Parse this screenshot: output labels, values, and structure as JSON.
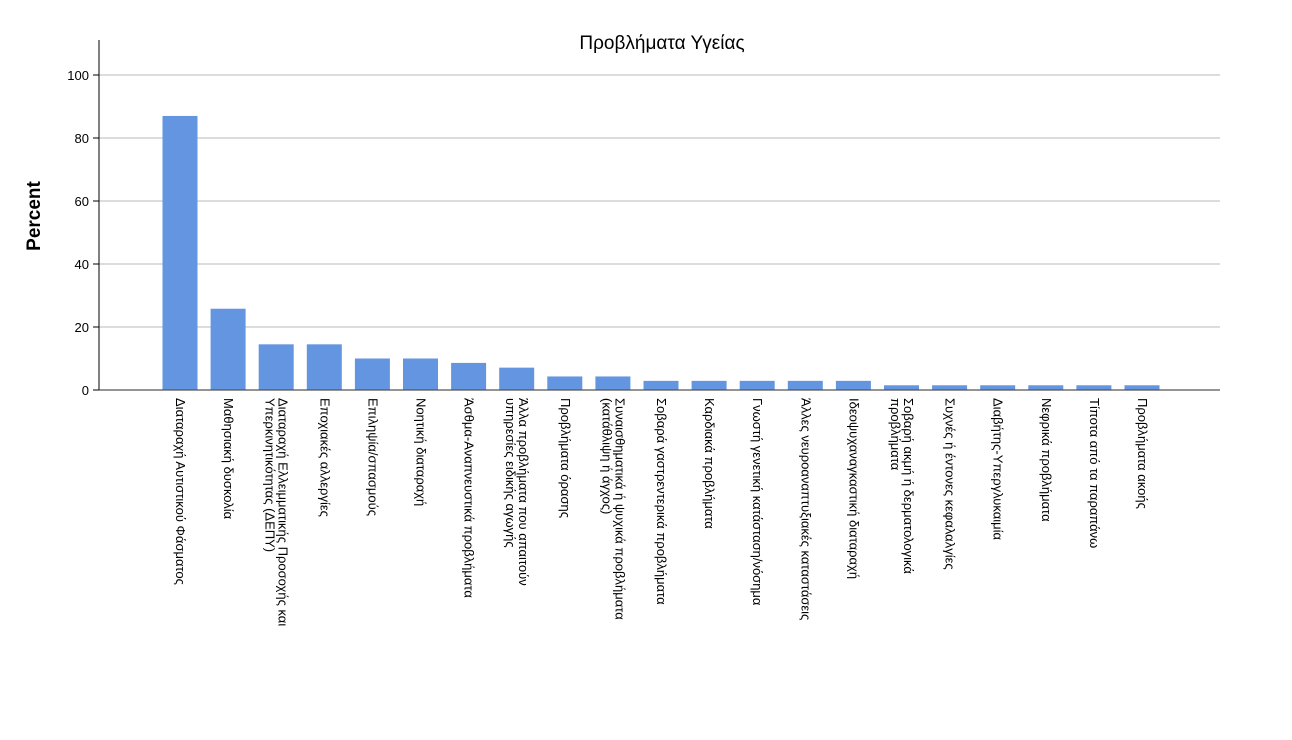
{
  "chart_data": {
    "type": "bar",
    "title": "Προβλήματα Υγείας",
    "ylabel": "Percent",
    "xlabel": "",
    "ylim": [
      0,
      110
    ],
    "yticks": [
      0,
      20,
      40,
      60,
      80,
      100
    ],
    "grid": true,
    "bar_color": "#6495e1",
    "categories": [
      [
        "Διαταραχή Αυτιστικού Φάσματος"
      ],
      [
        "Μαθησιακή δυσκολία"
      ],
      [
        "Διαταραχή Ελλειμματικής Προσοχής και",
        "Υπερκινητικότητας (ΔΕΠΥ)"
      ],
      [
        "Εποχιακές αλλεργίες"
      ],
      [
        "Επιληψία/σπασμούς"
      ],
      [
        "Νοητική διαταραχή"
      ],
      [
        "Άσθμα-Αναπνευστικά προβλήματα"
      ],
      [
        "Άλλα προβλήματα που απαιτούν",
        "υπηρεσίες ειδικής αγωγής"
      ],
      [
        "Προβλήματα όρασης"
      ],
      [
        "Συναισθηματικά ή ψυχικά προβλήματα",
        "(κατάθλιψη ή άγχος)"
      ],
      [
        "Σοβαρά γαστρεντερικά προβλήματα"
      ],
      [
        "Καρδιακά προβλήματα"
      ],
      [
        "Γνωστή γενετική κατάσταση/νόσημα"
      ],
      [
        "Άλλες νευροαναπτυξιακές καταστάσεις"
      ],
      [
        "Ιδεοψυχαναγκαστική διαταραχή"
      ],
      [
        "Σοβαρή ακμή ή δερματολογικά",
        "προβλήματα"
      ],
      [
        "Συχνές ή έντονες κεφαλαλγίες"
      ],
      [
        "Διαβήτης-Υπεργλυκαιμία"
      ],
      [
        "Νεφρικά προβλήματα"
      ],
      [
        "Τίποτα από τα παραπάνω"
      ],
      [
        "Προβλήματα ακοής"
      ]
    ],
    "values": [
      87,
      25.8,
      14.5,
      14.5,
      10,
      10,
      8.6,
      7.1,
      4.3,
      4.3,
      2.9,
      2.9,
      2.9,
      2.9,
      2.9,
      1.5,
      1.5,
      1.5,
      1.5,
      1.5,
      1.5
    ]
  }
}
